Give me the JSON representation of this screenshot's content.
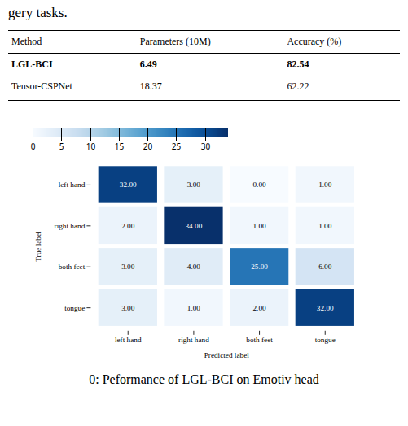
{
  "chart_data": {
    "type": "heatmap",
    "annotations": [
      "gery tasks.",
      "0: Peformance of LGL-BCI on Emotiv head"
    ],
    "table": {
      "headers": [
        "Method",
        "Parameters (10M)",
        "Accuracy (%)"
      ],
      "rows": [
        {
          "cells": [
            "LGL-BCI",
            "6.49",
            "82.54"
          ],
          "bold": true
        },
        {
          "cells": [
            "Tensor-CSPNet",
            "18.37",
            "62.22"
          ],
          "bold": false
        }
      ]
    },
    "categories": [
      "left hand",
      "right hand",
      "both feet",
      "tongue"
    ],
    "xlabel": "Predicted label",
    "ylabel": "True label",
    "cells": [
      [
        32.0,
        3.0,
        0.0,
        1.0
      ],
      [
        2.0,
        34.0,
        1.0,
        1.0
      ],
      [
        3.0,
        4.0,
        25.0,
        6.0
      ],
      [
        3.0,
        1.0,
        2.0,
        32.0
      ]
    ],
    "data_labels": true,
    "value_labels": [
      [
        "32.00",
        "3.00",
        "0.00",
        "1.00"
      ],
      [
        "2.00",
        "34.00",
        "1.00",
        "1.00"
      ],
      [
        "3.00",
        "4.00",
        "25.00",
        "6.00"
      ],
      [
        "3.00",
        "1.00",
        "2.00",
        "32.00"
      ]
    ],
    "colorbar": {
      "range": [
        0,
        34
      ],
      "ticks": [
        0,
        5,
        10,
        15,
        20,
        25,
        30
      ]
    }
  }
}
